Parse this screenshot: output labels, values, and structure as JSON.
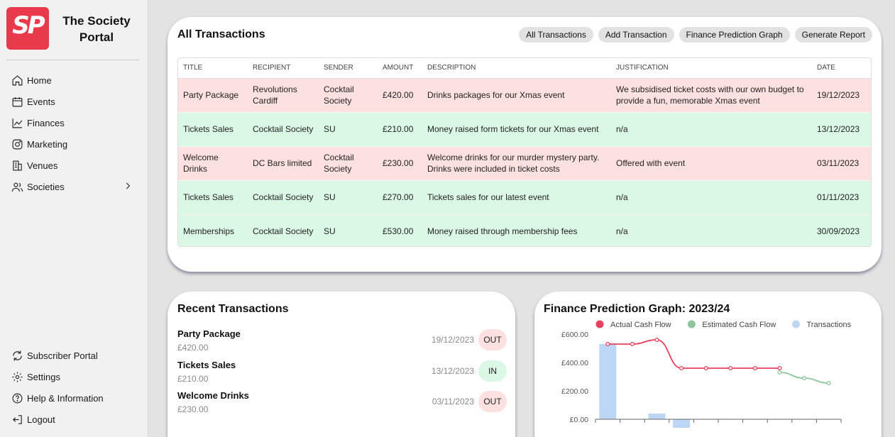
{
  "sidebar": {
    "logo_text": "SP",
    "brand": "The Society Portal",
    "nav": [
      {
        "label": "Home",
        "icon": "home-icon"
      },
      {
        "label": "Events",
        "icon": "calendar-icon"
      },
      {
        "label": "Finances",
        "icon": "trend-chart-icon"
      },
      {
        "label": "Marketing",
        "icon": "instagram-icon"
      },
      {
        "label": "Venues",
        "icon": "building-icon"
      },
      {
        "label": "Societies",
        "icon": "users-icon"
      }
    ],
    "nav_bottom": [
      {
        "label": "Subscriber Portal",
        "icon": "sync-icon"
      },
      {
        "label": "Settings",
        "icon": "gear-icon"
      },
      {
        "label": "Help & Information",
        "icon": "help-icon"
      },
      {
        "label": "Logout",
        "icon": "logout-icon"
      }
    ]
  },
  "all_transactions": {
    "title": "All Transactions",
    "tabs": [
      "All Transactions",
      "Add Transaction",
      "Finance Prediction Graph",
      "Generate Report"
    ],
    "columns": [
      "Title",
      "Recipient",
      "Sender",
      "Amount",
      "Description",
      "Justification",
      "Date"
    ],
    "rows": [
      {
        "type": "out",
        "title": "Party Package",
        "recipient": "Revolutions Cardiff",
        "sender": "Cocktail Society",
        "amount": "£420.00",
        "description": "Drinks packages for our Xmas event",
        "justification": "We subsidised ticket costs with our own budget to provide a fun, memorable Xmas event",
        "date": "19/12/2023"
      },
      {
        "type": "in",
        "title": "Tickets Sales",
        "recipient": "Cocktail Society",
        "sender": "SU",
        "amount": "£210.00",
        "description": "Money raised form tickets for our Xmas event",
        "justification": "n/a",
        "date": "13/12/2023"
      },
      {
        "type": "out",
        "title": "Welcome Drinks",
        "recipient": "DC Bars limited",
        "sender": "Cocktail Society",
        "amount": "£230.00",
        "description": "Welcome drinks for our murder mystery party. Drinks were included in ticket costs",
        "justification": "Offered with event",
        "date": "03/11/2023"
      },
      {
        "type": "in",
        "title": "Tickets Sales",
        "recipient": "Cocktail Society",
        "sender": "SU",
        "amount": "£270.00",
        "description": "Tickets sales for our latest event",
        "justification": "n/a",
        "date": "01/11/2023"
      },
      {
        "type": "in",
        "title": "Memberships",
        "recipient": "Cocktail Society",
        "sender": "SU",
        "amount": "£530.00",
        "description": "Money raised through membership fees",
        "justification": "n/a",
        "date": "30/09/2023"
      }
    ]
  },
  "recent": {
    "title": "Recent Transactions",
    "items": [
      {
        "title": "Party Package",
        "amount": "£420.00",
        "date": "19/12/2023",
        "direction": "OUT"
      },
      {
        "title": "Tickets Sales",
        "amount": "£210.00",
        "date": "13/12/2023",
        "direction": "IN"
      },
      {
        "title": "Welcome Drinks",
        "amount": "£230.00",
        "date": "03/11/2023",
        "direction": "OUT"
      }
    ]
  },
  "chart_data": {
    "type": "line",
    "title": "Finance Prediction Graph: 2023/24",
    "legend_position": "top",
    "series": [
      {
        "name": "Actual Cash Flow",
        "color": "#e8405e",
        "type": "line",
        "values": [
          530,
          530,
          560,
          360,
          360,
          360,
          360,
          360,
          null,
          null
        ]
      },
      {
        "name": "Estimated Cash Flow",
        "color": "#8fc49f",
        "type": "line",
        "values": [
          null,
          null,
          null,
          null,
          null,
          null,
          null,
          330,
          290,
          255
        ]
      },
      {
        "name": "Transactions",
        "color": "#bcd6f3",
        "type": "bar",
        "values": [
          530,
          0,
          40,
          -60,
          0,
          0,
          0,
          0,
          0,
          0
        ]
      }
    ],
    "y_ticks": [
      "£600.00",
      "£400.00",
      "£200.00",
      "£0.00"
    ],
    "ylim": [
      0,
      600
    ],
    "grid": false
  }
}
